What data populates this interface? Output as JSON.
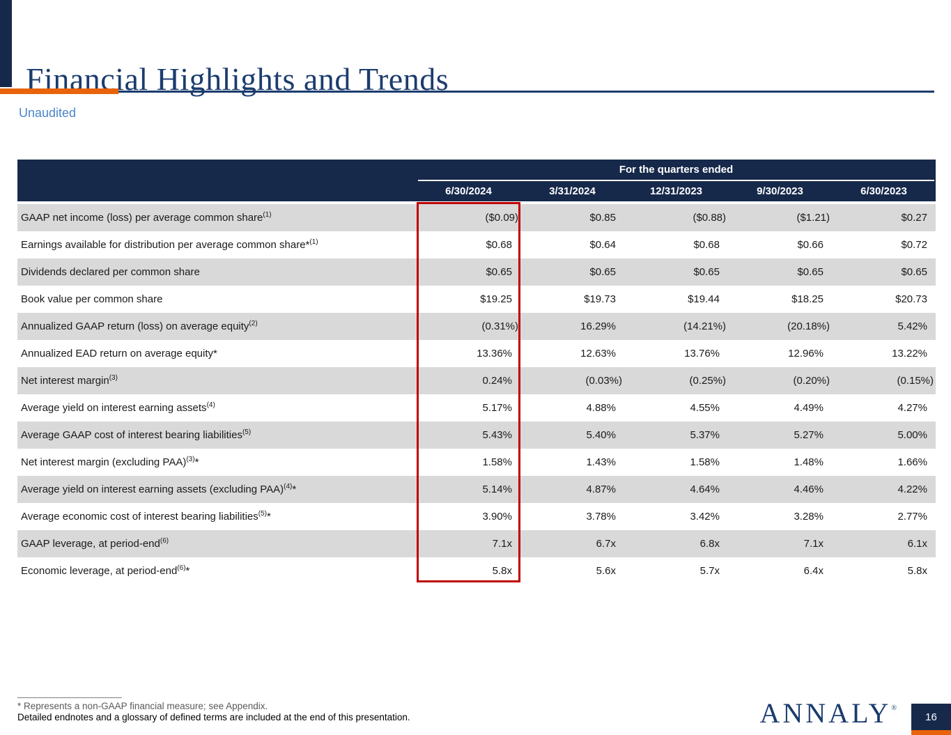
{
  "slide": {
    "title": "Financial Highlights and Trends",
    "subtitle": "Unaudited",
    "page_number": "16",
    "logo_text": "ANNALY",
    "logo_reg_mark": "®"
  },
  "table": {
    "header_group": "For the quarters ended",
    "columns": [
      "6/30/2024",
      "3/31/2024",
      "12/31/2023",
      "9/30/2023",
      "6/30/2023"
    ],
    "highlighted_column": "6/30/2024",
    "rows": [
      {
        "label": "GAAP net income (loss) per average common share",
        "sup": "(1)",
        "suffix": "",
        "values": [
          "($0.09)",
          "$0.85",
          "($0.88)",
          "($1.21)",
          "$0.27"
        ]
      },
      {
        "label": "Earnings available for distribution per average common share*",
        "sup": "(1)",
        "suffix": "",
        "values": [
          "$0.68",
          "$0.64",
          "$0.68",
          "$0.66",
          "$0.72"
        ]
      },
      {
        "label": "Dividends declared per common share",
        "sup": "",
        "suffix": "",
        "values": [
          "$0.65",
          "$0.65",
          "$0.65",
          "$0.65",
          "$0.65"
        ]
      },
      {
        "label": "Book value per common share",
        "sup": "",
        "suffix": "",
        "values": [
          "$19.25",
          "$19.73",
          "$19.44",
          "$18.25",
          "$20.73"
        ]
      },
      {
        "label": "Annualized GAAP return (loss) on average equity",
        "sup": "(2)",
        "suffix": "",
        "values": [
          "(0.31%)",
          "16.29%",
          "(14.21%)",
          "(20.18%)",
          "5.42%"
        ]
      },
      {
        "label": "Annualized EAD return on average equity*",
        "sup": "",
        "suffix": "",
        "values": [
          "13.36%",
          "12.63%",
          "13.76%",
          "12.96%",
          "13.22%"
        ]
      },
      {
        "label": "Net interest margin",
        "sup": "(3)",
        "suffix": "",
        "values": [
          "0.24%",
          "(0.03%)",
          "(0.25%)",
          "(0.20%)",
          "(0.15%)"
        ]
      },
      {
        "label": "Average yield on interest earning assets",
        "sup": "(4)",
        "suffix": "",
        "values": [
          "5.17%",
          "4.88%",
          "4.55%",
          "4.49%",
          "4.27%"
        ]
      },
      {
        "label": "Average GAAP cost of interest bearing liabilities",
        "sup": "(5)",
        "suffix": "",
        "values": [
          "5.43%",
          "5.40%",
          "5.37%",
          "5.27%",
          "5.00%"
        ]
      },
      {
        "label": "Net interest margin (excluding PAA)",
        "sup": "(3)",
        "suffix": "*",
        "values": [
          "1.58%",
          "1.43%",
          "1.58%",
          "1.48%",
          "1.66%"
        ]
      },
      {
        "label": "Average yield on interest earning assets (excluding PAA)",
        "sup": "(4)",
        "suffix": "*",
        "values": [
          "5.14%",
          "4.87%",
          "4.64%",
          "4.46%",
          "4.22%"
        ]
      },
      {
        "label": "Average economic cost of interest bearing liabilities",
        "sup": "(5)",
        "suffix": "*",
        "values": [
          "3.90%",
          "3.78%",
          "3.42%",
          "3.28%",
          "2.77%"
        ]
      },
      {
        "label": "GAAP leverage, at period-end",
        "sup": "(6)",
        "suffix": "",
        "values": [
          "7.1x",
          "6.7x",
          "6.8x",
          "7.1x",
          "6.1x"
        ]
      },
      {
        "label": "Economic leverage, at period-end",
        "sup": "(6)",
        "suffix": "*",
        "values": [
          "5.8x",
          "5.6x",
          "5.7x",
          "6.4x",
          "5.8x"
        ]
      }
    ]
  },
  "footnotes": {
    "line1": "* Represents a non-GAAP financial measure; see Appendix.",
    "line2": "Detailed endnotes and a glossary of defined terms are included at the end of this presentation."
  },
  "colors": {
    "navy": "#16294B",
    "title_blue": "#1B3C6E",
    "orange": "#E8630A",
    "unaudited_blue": "#4A86C9",
    "stripe_gray": "#D9D9D9",
    "highlight_red": "#C00000"
  }
}
